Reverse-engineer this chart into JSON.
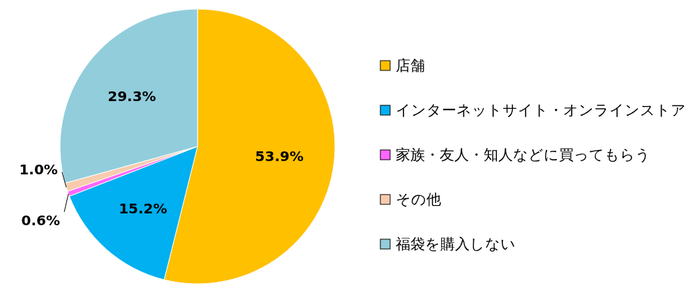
{
  "chart_data": {
    "type": "pie",
    "categories": [
      "店舗",
      "インターネットサイト・オンラインストア",
      "家族・友人・知人などに買ってもらう",
      "その他",
      "福袋を購入しない"
    ],
    "values": [
      53.9,
      15.2,
      0.6,
      1.0,
      29.3
    ],
    "value_labels": [
      "53.9%",
      "15.2%",
      "0.6%",
      "1.0%",
      "29.3%"
    ],
    "colors": [
      "#ffc000",
      "#00b0f0",
      "#ff66ff",
      "#f8cbad",
      "#92cddc"
    ],
    "legend": "right"
  }
}
